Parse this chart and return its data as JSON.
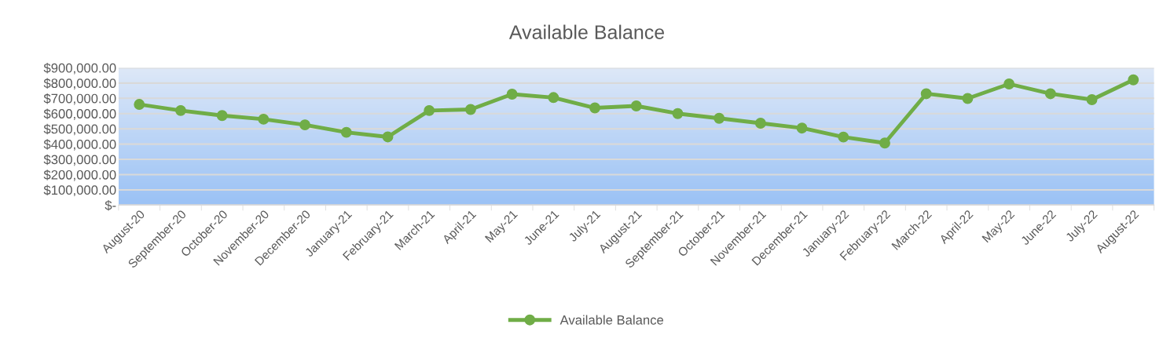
{
  "chart_data": {
    "type": "line",
    "title": "Available Balance",
    "categories": [
      "August-20",
      "September-20",
      "October-20",
      "November-20",
      "December-20",
      "January-21",
      "February-21",
      "March-21",
      "April-21",
      "May-21",
      "June-21",
      "July-21",
      "August-21",
      "September-21",
      "October-21",
      "November-21",
      "December-21",
      "January-22",
      "February-22",
      "March-22",
      "April-22",
      "May-22",
      "June-22",
      "July-22",
      "August-22"
    ],
    "series": [
      {
        "name": "Available Balance",
        "color": "#70ad47",
        "values": [
          660000,
          620000,
          587000,
          563000,
          526000,
          477000,
          447000,
          620000,
          627000,
          727000,
          705000,
          637000,
          650000,
          600000,
          569000,
          537000,
          505000,
          446000,
          407000,
          730000,
          699000,
          794000,
          730000,
          691000,
          821000
        ]
      }
    ],
    "ylim": [
      0,
      900000
    ],
    "yticks": [
      {
        "value": 0,
        "label": "$-"
      },
      {
        "value": 100000,
        "label": "$100,000.00"
      },
      {
        "value": 200000,
        "label": "$200,000.00"
      },
      {
        "value": 300000,
        "label": "$300,000.00"
      },
      {
        "value": 400000,
        "label": "$400,000.00"
      },
      {
        "value": 500000,
        "label": "$500,000.00"
      },
      {
        "value": 600000,
        "label": "$600,000.00"
      },
      {
        "value": 700000,
        "label": "$700,000.00"
      },
      {
        "value": 800000,
        "label": "$800,000.00"
      },
      {
        "value": 900000,
        "label": "$900,000.00"
      }
    ],
    "grid": "y",
    "legend": "bottom",
    "marker": "circle",
    "line_style": "solid"
  }
}
